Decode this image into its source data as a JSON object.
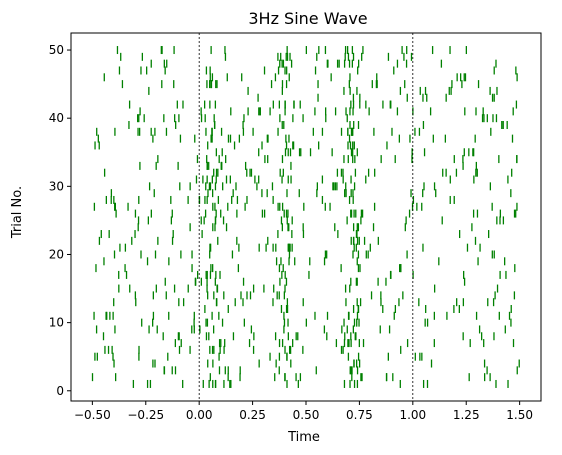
{
  "chart_data": {
    "type": "raster",
    "title": "3Hz Sine Wave",
    "xlabel": "Time",
    "ylabel": "Trial No.",
    "xlim": [
      -0.6,
      1.6
    ],
    "ylim": [
      -1.5,
      52.5
    ],
    "xticks": [
      -0.5,
      -0.25,
      0.0,
      0.25,
      0.5,
      0.75,
      1.0,
      1.25,
      1.5
    ],
    "xtick_labels": [
      "−0.50",
      "−0.25",
      "0.00",
      "0.25",
      "0.50",
      "0.75",
      "1.00",
      "1.25",
      "1.50"
    ],
    "yticks": [
      0,
      10,
      20,
      30,
      40,
      50
    ],
    "ytick_labels": [
      "0",
      "10",
      "20",
      "30",
      "40",
      "50"
    ],
    "trials": 50,
    "time_range": [
      -0.5,
      1.5
    ],
    "event_lines_x": [
      0.0,
      1.0
    ],
    "stimulus_frequency_hz": 3,
    "stimulus_window": [
      0.0,
      1.0
    ],
    "peak_times": [
      0.05,
      0.4,
      0.72
    ],
    "spike_color": "#008000",
    "event_line_color": "#000000",
    "grid": false
  }
}
